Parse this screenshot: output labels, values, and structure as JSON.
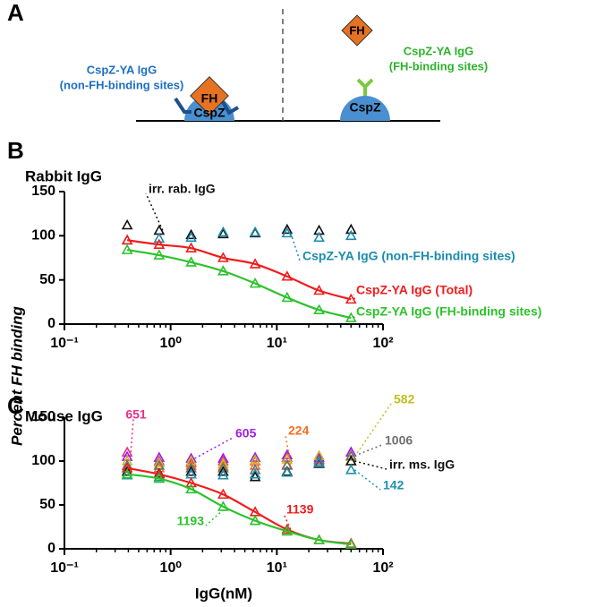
{
  "panels": [
    "A",
    "B",
    "C"
  ],
  "y_axis_label": "Percent FH binding",
  "x_axis_label": "IgG(nM)",
  "diagram": {
    "left": {
      "antigen": "FH",
      "protein": "CspZ",
      "label": [
        "CspZ-YA IgG",
        "(non-FH-binding sites)"
      ]
    },
    "right": {
      "antigen": "FH",
      "protein": "CspZ",
      "label": [
        "CspZ-YA IgG",
        "(FH-binding sites)"
      ]
    }
  },
  "chart_data": [
    {
      "type": "scatter",
      "title": "Rabbit IgG",
      "log_x": true,
      "x": [
        0.39,
        0.78,
        1.56,
        3.125,
        6.25,
        12.5,
        25,
        50
      ],
      "xlim": [
        0.1,
        100
      ],
      "xticks": [
        {
          "value": 0.1,
          "label": "10⁻¹"
        },
        {
          "value": 1,
          "label": "10⁰"
        },
        {
          "value": 10,
          "label": "10¹"
        },
        {
          "value": 100,
          "label": "10²"
        }
      ],
      "ylim": [
        0,
        150
      ],
      "yticks": [
        0,
        50,
        100,
        150
      ],
      "series": [
        {
          "name": "irr. rab. IgG",
          "color": "#111111",
          "values": [
            112,
            106,
            101,
            102,
            103,
            107,
            106,
            107
          ]
        },
        {
          "name": "CspZ-YA IgG (non-FH-binding sites)",
          "color": "#1a8cae",
          "values": [
            95,
            97,
            98,
            104,
            104,
            103,
            98,
            100
          ]
        },
        {
          "name": "CspZ-YA IgG (Total)",
          "color": "#f01c1c",
          "fit": true,
          "values": [
            95,
            90,
            86,
            75,
            68,
            54,
            38,
            28
          ]
        },
        {
          "name": "CspZ-YA IgG (FH-binding sites)",
          "color": "#2cc22c",
          "fit": true,
          "values": [
            84,
            78,
            70,
            60,
            46,
            30,
            16,
            7
          ]
        }
      ]
    },
    {
      "type": "scatter",
      "title": "Mouse IgG",
      "log_x": true,
      "x": [
        0.39,
        0.78,
        1.56,
        3.125,
        6.25,
        12.5,
        25,
        50
      ],
      "xlim": [
        0.1,
        100
      ],
      "xticks": [
        {
          "value": 0.1,
          "label": "10⁻¹"
        },
        {
          "value": 1,
          "label": "10⁰"
        },
        {
          "value": 10,
          "label": "10¹"
        },
        {
          "value": 100,
          "label": "10²"
        }
      ],
      "ylim": [
        0,
        150
      ],
      "yticks": [
        0,
        50,
        100,
        150
      ],
      "series": [
        {
          "name": "651",
          "color": "#e8308a",
          "values": [
            110,
            100,
            98,
            100,
            100,
            104,
            102,
            110
          ]
        },
        {
          "name": "605",
          "color": "#a020e0",
          "values": [
            105,
            104,
            103,
            103,
            104,
            107,
            104,
            110
          ]
        },
        {
          "name": "224",
          "color": "#f07020",
          "values": [
            95,
            92,
            95,
            94,
            95,
            96,
            98,
            100
          ]
        },
        {
          "name": "582",
          "color": "#c0c020",
          "values": [
            100,
            98,
            100,
            97,
            101,
            102,
            106,
            105
          ]
        },
        {
          "name": "1006",
          "color": "#707070",
          "values": [
            95,
            95,
            92,
            92,
            90,
            95,
            100,
            106
          ]
        },
        {
          "name": "irr. ms. IgG",
          "color": "#111111",
          "values": [
            88,
            86,
            88,
            88,
            82,
            88,
            97,
            100
          ]
        },
        {
          "name": "142",
          "color": "#2090b0",
          "values": [
            84,
            82,
            85,
            84,
            85,
            87,
            98,
            90
          ]
        },
        {
          "name": "1139",
          "color": "#f01c1c",
          "fit": true,
          "values": [
            92,
            85,
            75,
            62,
            42,
            22,
            10,
            6
          ]
        },
        {
          "name": "1193",
          "color": "#2cc22c",
          "fit": true,
          "values": [
            85,
            80,
            68,
            48,
            32,
            20,
            10,
            5
          ]
        }
      ]
    }
  ]
}
